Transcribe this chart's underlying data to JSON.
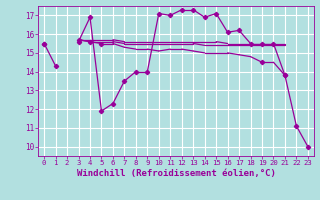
{
  "bg_color": "#b2e0e0",
  "grid_color": "#ffffff",
  "line_color": "#990099",
  "xlabel": "Windchill (Refroidissement éolien,°C)",
  "tick_color": "#990099",
  "ylim": [
    9.5,
    17.5
  ],
  "xlim": [
    -0.5,
    23.5
  ],
  "yticks": [
    10,
    11,
    12,
    13,
    14,
    15,
    16,
    17
  ],
  "xticks": [
    0,
    1,
    2,
    3,
    4,
    5,
    6,
    7,
    8,
    9,
    10,
    11,
    12,
    13,
    14,
    15,
    16,
    17,
    18,
    19,
    20,
    21,
    22,
    23
  ],
  "series": [
    [
      15.5,
      14.3,
      null,
      15.6,
      16.9,
      11.9,
      12.3,
      13.5,
      14.0,
      14.0,
      17.1,
      17.0,
      17.3,
      17.3,
      16.9,
      17.1,
      16.1,
      16.2,
      15.5,
      15.5,
      15.5,
      13.8,
      11.1,
      10.0
    ],
    [
      15.5,
      null,
      null,
      15.7,
      15.6,
      15.5,
      15.5,
      15.3,
      15.2,
      15.2,
      15.1,
      15.2,
      15.2,
      15.1,
      15.0,
      15.0,
      15.0,
      14.9,
      14.8,
      14.5,
      14.5,
      13.8,
      null,
      null
    ],
    [
      15.5,
      null,
      null,
      15.7,
      15.6,
      15.6,
      15.6,
      15.5,
      15.5,
      15.5,
      15.5,
      15.5,
      15.5,
      15.5,
      15.4,
      15.4,
      15.4,
      15.4,
      15.4,
      15.4,
      15.4,
      15.4,
      null,
      null
    ],
    [
      15.5,
      null,
      null,
      15.7,
      15.7,
      15.7,
      15.7,
      15.6,
      15.6,
      15.6,
      15.6,
      15.6,
      15.6,
      15.6,
      15.6,
      15.6,
      15.5,
      15.5,
      15.5,
      15.5,
      15.5,
      15.5,
      null,
      null
    ]
  ],
  "show_markers_series": [
    0,
    1
  ],
  "marker_indices_s0": [
    0,
    1,
    3,
    4,
    5,
    6,
    7,
    8,
    9,
    10,
    11,
    12,
    13,
    14,
    15,
    16,
    17,
    18,
    19,
    20,
    21,
    22,
    23
  ],
  "marker_indices_s1": [
    0,
    3,
    4,
    5,
    19,
    21
  ]
}
